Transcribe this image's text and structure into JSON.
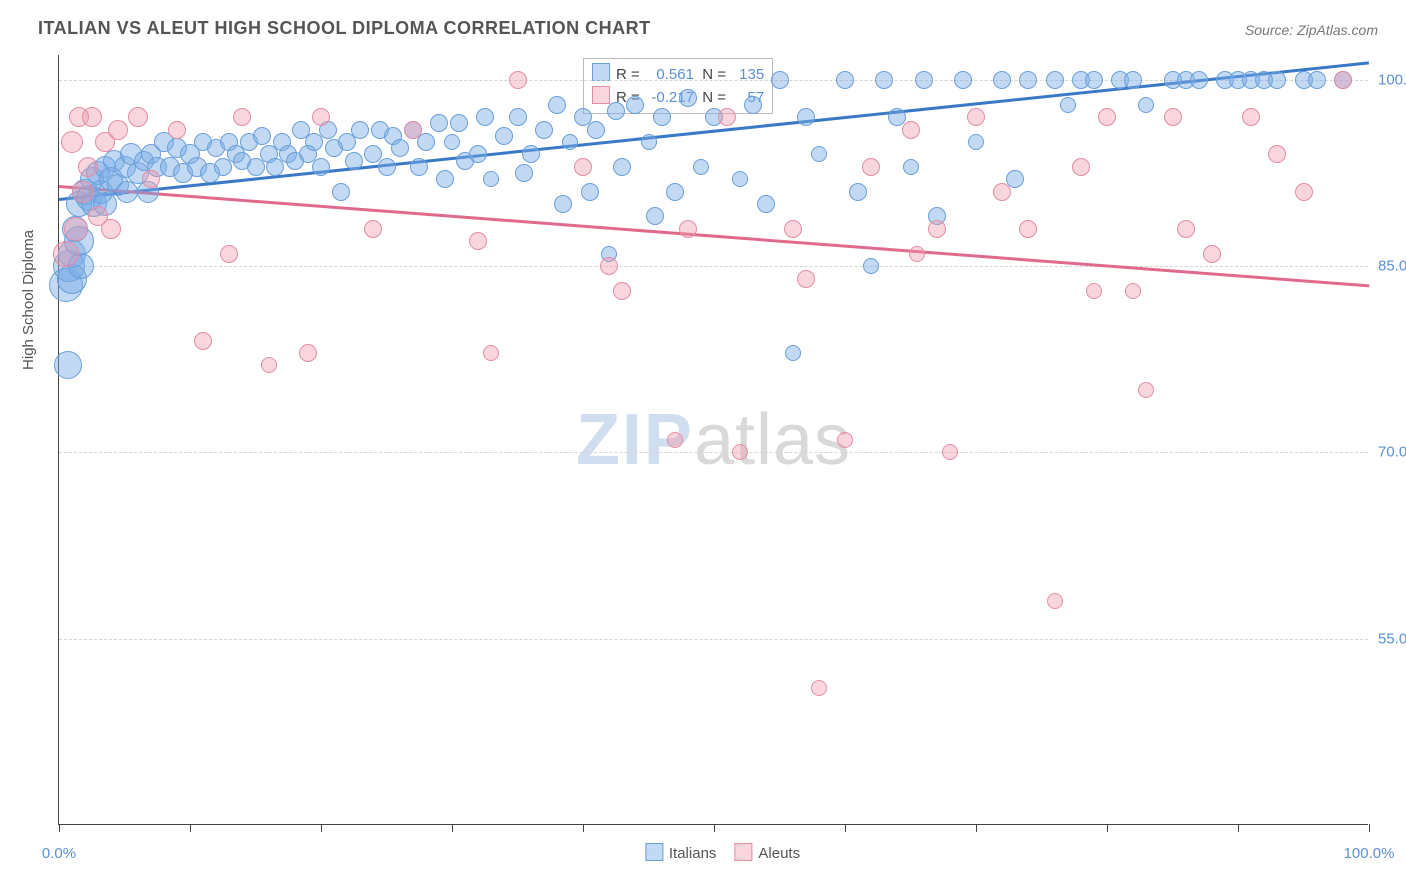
{
  "title": "ITALIAN VS ALEUT HIGH SCHOOL DIPLOMA CORRELATION CHART",
  "source": "Source: ZipAtlas.com",
  "y_axis_label": "High School Diploma",
  "watermark": {
    "part1": "ZIP",
    "part2": "atlas"
  },
  "chart": {
    "type": "scatter",
    "background_color": "#ffffff",
    "grid_color": "#d5d5d5",
    "axis_color": "#444444",
    "label_fontsize": 15,
    "title_fontsize": 18,
    "xlim": [
      0,
      100
    ],
    "ylim": [
      40,
      102
    ],
    "y_ticks": [
      {
        "v": 55,
        "label": "55.0%"
      },
      {
        "v": 70,
        "label": "70.0%"
      },
      {
        "v": 85,
        "label": "85.0%"
      },
      {
        "v": 100,
        "label": "100.0%"
      }
    ],
    "x_tick_positions": [
      0,
      10,
      20,
      30,
      40,
      50,
      60,
      70,
      80,
      90,
      100
    ],
    "x_tick_labels": [
      {
        "v": 0,
        "label": "0.0%"
      },
      {
        "v": 100,
        "label": "100.0%"
      }
    ],
    "series": [
      {
        "name": "Italians",
        "fill": "rgba(120, 170, 230, 0.45)",
        "stroke": "#6a9fd8",
        "trend_color": "#3a78c8",
        "trend": {
          "x1": 0,
          "y1": 90.5,
          "x2": 100,
          "y2": 101.5
        },
        "stats": {
          "R": "0.561",
          "N": "135"
        },
        "point_radius_range": [
          7,
          18
        ],
        "points": [
          {
            "x": 0.5,
            "y": 83.5,
            "r": 17
          },
          {
            "x": 0.8,
            "y": 85,
            "r": 16
          },
          {
            "x": 0.7,
            "y": 77,
            "r": 14
          },
          {
            "x": 1,
            "y": 84,
            "r": 15
          },
          {
            "x": 1,
            "y": 86,
            "r": 14
          },
          {
            "x": 1.2,
            "y": 88,
            "r": 13
          },
          {
            "x": 1.5,
            "y": 87,
            "r": 15
          },
          {
            "x": 1.7,
            "y": 85,
            "r": 13
          },
          {
            "x": 1.5,
            "y": 90,
            "r": 13
          },
          {
            "x": 2,
            "y": 91,
            "r": 13
          },
          {
            "x": 2.3,
            "y": 90.5,
            "r": 13
          },
          {
            "x": 2.5,
            "y": 92,
            "r": 12
          },
          {
            "x": 2.7,
            "y": 90,
            "r": 13
          },
          {
            "x": 3,
            "y": 92.5,
            "r": 12
          },
          {
            "x": 3.2,
            "y": 91,
            "r": 12
          },
          {
            "x": 3.5,
            "y": 93,
            "r": 11
          },
          {
            "x": 3.5,
            "y": 90,
            "r": 12
          },
          {
            "x": 4,
            "y": 92,
            "r": 12
          },
          {
            "x": 4.2,
            "y": 93.5,
            "r": 11
          },
          {
            "x": 4.5,
            "y": 91.5,
            "r": 11
          },
          {
            "x": 5,
            "y": 93,
            "r": 11
          },
          {
            "x": 5.2,
            "y": 91,
            "r": 11
          },
          {
            "x": 5.5,
            "y": 94,
            "r": 11
          },
          {
            "x": 6,
            "y": 92.5,
            "r": 11
          },
          {
            "x": 6.5,
            "y": 93.5,
            "r": 10
          },
          {
            "x": 6.8,
            "y": 91,
            "r": 11
          },
          {
            "x": 7,
            "y": 94,
            "r": 10
          },
          {
            "x": 7.5,
            "y": 93,
            "r": 10
          },
          {
            "x": 8,
            "y": 95,
            "r": 10
          },
          {
            "x": 8.5,
            "y": 93,
            "r": 10
          },
          {
            "x": 9,
            "y": 94.5,
            "r": 10
          },
          {
            "x": 9.5,
            "y": 92.5,
            "r": 10
          },
          {
            "x": 10,
            "y": 94,
            "r": 10
          },
          {
            "x": 10.5,
            "y": 93,
            "r": 10
          },
          {
            "x": 11,
            "y": 95,
            "r": 9
          },
          {
            "x": 11.5,
            "y": 92.5,
            "r": 10
          },
          {
            "x": 12,
            "y": 94.5,
            "r": 9
          },
          {
            "x": 12.5,
            "y": 93,
            "r": 9
          },
          {
            "x": 13,
            "y": 95,
            "r": 9
          },
          {
            "x": 13.5,
            "y": 94,
            "r": 9
          },
          {
            "x": 14,
            "y": 93.5,
            "r": 9
          },
          {
            "x": 14.5,
            "y": 95,
            "r": 9
          },
          {
            "x": 15,
            "y": 93,
            "r": 9
          },
          {
            "x": 15.5,
            "y": 95.5,
            "r": 9
          },
          {
            "x": 16,
            "y": 94,
            "r": 9
          },
          {
            "x": 16.5,
            "y": 93,
            "r": 9
          },
          {
            "x": 17,
            "y": 95,
            "r": 9
          },
          {
            "x": 17.5,
            "y": 94,
            "r": 9
          },
          {
            "x": 18,
            "y": 93.5,
            "r": 9
          },
          {
            "x": 18.5,
            "y": 96,
            "r": 9
          },
          {
            "x": 19,
            "y": 94,
            "r": 9
          },
          {
            "x": 19.5,
            "y": 95,
            "r": 9
          },
          {
            "x": 20,
            "y": 93,
            "r": 9
          },
          {
            "x": 20.5,
            "y": 96,
            "r": 9
          },
          {
            "x": 21,
            "y": 94.5,
            "r": 9
          },
          {
            "x": 21.5,
            "y": 91,
            "r": 9
          },
          {
            "x": 22,
            "y": 95,
            "r": 9
          },
          {
            "x": 22.5,
            "y": 93.5,
            "r": 9
          },
          {
            "x": 23,
            "y": 96,
            "r": 9
          },
          {
            "x": 24,
            "y": 94,
            "r": 9
          },
          {
            "x": 24.5,
            "y": 96,
            "r": 9
          },
          {
            "x": 25,
            "y": 93,
            "r": 9
          },
          {
            "x": 25.5,
            "y": 95.5,
            "r": 9
          },
          {
            "x": 26,
            "y": 94.5,
            "r": 9
          },
          {
            "x": 27,
            "y": 96,
            "r": 9
          },
          {
            "x": 27.5,
            "y": 93,
            "r": 9
          },
          {
            "x": 28,
            "y": 95,
            "r": 9
          },
          {
            "x": 29,
            "y": 96.5,
            "r": 9
          },
          {
            "x": 29.5,
            "y": 92,
            "r": 9
          },
          {
            "x": 30,
            "y": 95,
            "r": 8
          },
          {
            "x": 30.5,
            "y": 96.5,
            "r": 9
          },
          {
            "x": 31,
            "y": 93.5,
            "r": 9
          },
          {
            "x": 32,
            "y": 94,
            "r": 9
          },
          {
            "x": 32.5,
            "y": 97,
            "r": 9
          },
          {
            "x": 33,
            "y": 92,
            "r": 8
          },
          {
            "x": 34,
            "y": 95.5,
            "r": 9
          },
          {
            "x": 35,
            "y": 97,
            "r": 9
          },
          {
            "x": 35.5,
            "y": 92.5,
            "r": 9
          },
          {
            "x": 36,
            "y": 94,
            "r": 9
          },
          {
            "x": 37,
            "y": 96,
            "r": 9
          },
          {
            "x": 38,
            "y": 98,
            "r": 9
          },
          {
            "x": 38.5,
            "y": 90,
            "r": 9
          },
          {
            "x": 39,
            "y": 95,
            "r": 8
          },
          {
            "x": 40,
            "y": 97,
            "r": 9
          },
          {
            "x": 40.5,
            "y": 91,
            "r": 9
          },
          {
            "x": 41,
            "y": 96,
            "r": 9
          },
          {
            "x": 42,
            "y": 86,
            "r": 8
          },
          {
            "x": 42.5,
            "y": 97.5,
            "r": 9
          },
          {
            "x": 43,
            "y": 93,
            "r": 9
          },
          {
            "x": 44,
            "y": 98,
            "r": 9
          },
          {
            "x": 45,
            "y": 95,
            "r": 8
          },
          {
            "x": 45.5,
            "y": 89,
            "r": 9
          },
          {
            "x": 46,
            "y": 97,
            "r": 9
          },
          {
            "x": 47,
            "y": 91,
            "r": 9
          },
          {
            "x": 48,
            "y": 98.5,
            "r": 9
          },
          {
            "x": 49,
            "y": 93,
            "r": 8
          },
          {
            "x": 50,
            "y": 97,
            "r": 9
          },
          {
            "x": 52,
            "y": 92,
            "r": 8
          },
          {
            "x": 53,
            "y": 98,
            "r": 9
          },
          {
            "x": 54,
            "y": 90,
            "r": 9
          },
          {
            "x": 55,
            "y": 100,
            "r": 9
          },
          {
            "x": 56,
            "y": 78,
            "r": 8
          },
          {
            "x": 57,
            "y": 97,
            "r": 9
          },
          {
            "x": 58,
            "y": 94,
            "r": 8
          },
          {
            "x": 60,
            "y": 100,
            "r": 9
          },
          {
            "x": 61,
            "y": 91,
            "r": 9
          },
          {
            "x": 62,
            "y": 85,
            "r": 8
          },
          {
            "x": 63,
            "y": 100,
            "r": 9
          },
          {
            "x": 64,
            "y": 97,
            "r": 9
          },
          {
            "x": 65,
            "y": 93,
            "r": 8
          },
          {
            "x": 66,
            "y": 100,
            "r": 9
          },
          {
            "x": 67,
            "y": 89,
            "r": 9
          },
          {
            "x": 69,
            "y": 100,
            "r": 9
          },
          {
            "x": 70,
            "y": 95,
            "r": 8
          },
          {
            "x": 72,
            "y": 100,
            "r": 9
          },
          {
            "x": 73,
            "y": 92,
            "r": 9
          },
          {
            "x": 74,
            "y": 100,
            "r": 9
          },
          {
            "x": 76,
            "y": 100,
            "r": 9
          },
          {
            "x": 77,
            "y": 98,
            "r": 8
          },
          {
            "x": 78,
            "y": 100,
            "r": 9
          },
          {
            "x": 79,
            "y": 100,
            "r": 9
          },
          {
            "x": 81,
            "y": 100,
            "r": 9
          },
          {
            "x": 82,
            "y": 100,
            "r": 9
          },
          {
            "x": 83,
            "y": 98,
            "r": 8
          },
          {
            "x": 85,
            "y": 100,
            "r": 9
          },
          {
            "x": 86,
            "y": 100,
            "r": 9
          },
          {
            "x": 87,
            "y": 100,
            "r": 9
          },
          {
            "x": 89,
            "y": 100,
            "r": 9
          },
          {
            "x": 90,
            "y": 100,
            "r": 9
          },
          {
            "x": 91,
            "y": 100,
            "r": 9
          },
          {
            "x": 92,
            "y": 100,
            "r": 9
          },
          {
            "x": 93,
            "y": 100,
            "r": 9
          },
          {
            "x": 95,
            "y": 100,
            "r": 9
          },
          {
            "x": 96,
            "y": 100,
            "r": 9
          },
          {
            "x": 98,
            "y": 100,
            "r": 9
          }
        ]
      },
      {
        "name": "Aleuts",
        "fill": "rgba(240, 150, 170, 0.40)",
        "stroke": "#e48da5",
        "trend_color": "#e06a8c",
        "trend": {
          "x1": 0,
          "y1": 91.5,
          "x2": 100,
          "y2": 83.5
        },
        "stats": {
          "R": "-0.217",
          "N": "57"
        },
        "point_radius_range": [
          7,
          14
        ],
        "points": [
          {
            "x": 0.5,
            "y": 86,
            "r": 13
          },
          {
            "x": 1,
            "y": 95,
            "r": 11
          },
          {
            "x": 1.3,
            "y": 88,
            "r": 12
          },
          {
            "x": 1.5,
            "y": 97,
            "r": 10
          },
          {
            "x": 1.8,
            "y": 91,
            "r": 11
          },
          {
            "x": 2.2,
            "y": 93,
            "r": 10
          },
          {
            "x": 2.5,
            "y": 97,
            "r": 10
          },
          {
            "x": 3,
            "y": 89,
            "r": 10
          },
          {
            "x": 3.5,
            "y": 95,
            "r": 10
          },
          {
            "x": 4,
            "y": 88,
            "r": 10
          },
          {
            "x": 4.5,
            "y": 96,
            "r": 10
          },
          {
            "x": 6,
            "y": 97,
            "r": 10
          },
          {
            "x": 7,
            "y": 92,
            "r": 9
          },
          {
            "x": 9,
            "y": 96,
            "r": 9
          },
          {
            "x": 11,
            "y": 79,
            "r": 9
          },
          {
            "x": 13,
            "y": 86,
            "r": 9
          },
          {
            "x": 14,
            "y": 97,
            "r": 9
          },
          {
            "x": 16,
            "y": 77,
            "r": 8
          },
          {
            "x": 19,
            "y": 78,
            "r": 9
          },
          {
            "x": 20,
            "y": 97,
            "r": 9
          },
          {
            "x": 24,
            "y": 88,
            "r": 9
          },
          {
            "x": 27,
            "y": 96,
            "r": 9
          },
          {
            "x": 32,
            "y": 87,
            "r": 9
          },
          {
            "x": 33,
            "y": 78,
            "r": 8
          },
          {
            "x": 35,
            "y": 100,
            "r": 9
          },
          {
            "x": 40,
            "y": 93,
            "r": 9
          },
          {
            "x": 42,
            "y": 85,
            "r": 9
          },
          {
            "x": 43,
            "y": 83,
            "r": 9
          },
          {
            "x": 47,
            "y": 71,
            "r": 8
          },
          {
            "x": 48,
            "y": 88,
            "r": 9
          },
          {
            "x": 51,
            "y": 97,
            "r": 9
          },
          {
            "x": 52,
            "y": 70,
            "r": 8
          },
          {
            "x": 56,
            "y": 88,
            "r": 9
          },
          {
            "x": 57,
            "y": 84,
            "r": 9
          },
          {
            "x": 58,
            "y": 51,
            "r": 8
          },
          {
            "x": 60,
            "y": 71,
            "r": 8
          },
          {
            "x": 62,
            "y": 93,
            "r": 9
          },
          {
            "x": 65,
            "y": 96,
            "r": 9
          },
          {
            "x": 65.5,
            "y": 86,
            "r": 8
          },
          {
            "x": 67,
            "y": 88,
            "r": 9
          },
          {
            "x": 68,
            "y": 70,
            "r": 8
          },
          {
            "x": 70,
            "y": 97,
            "r": 9
          },
          {
            "x": 72,
            "y": 91,
            "r": 9
          },
          {
            "x": 74,
            "y": 88,
            "r": 9
          },
          {
            "x": 76,
            "y": 58,
            "r": 8
          },
          {
            "x": 78,
            "y": 93,
            "r": 9
          },
          {
            "x": 79,
            "y": 83,
            "r": 8
          },
          {
            "x": 80,
            "y": 97,
            "r": 9
          },
          {
            "x": 82,
            "y": 83,
            "r": 8
          },
          {
            "x": 83,
            "y": 75,
            "r": 8
          },
          {
            "x": 85,
            "y": 97,
            "r": 9
          },
          {
            "x": 86,
            "y": 88,
            "r": 9
          },
          {
            "x": 88,
            "y": 86,
            "r": 9
          },
          {
            "x": 91,
            "y": 97,
            "r": 9
          },
          {
            "x": 93,
            "y": 94,
            "r": 9
          },
          {
            "x": 95,
            "y": 91,
            "r": 9
          },
          {
            "x": 98,
            "y": 100,
            "r": 9
          }
        ]
      }
    ],
    "legend_bottom": [
      {
        "label": "Italians",
        "fill": "rgba(120,170,230,0.45)",
        "stroke": "#6a9fd8"
      },
      {
        "label": "Aleuts",
        "fill": "rgba(240,150,170,0.40)",
        "stroke": "#e48da5"
      }
    ]
  }
}
